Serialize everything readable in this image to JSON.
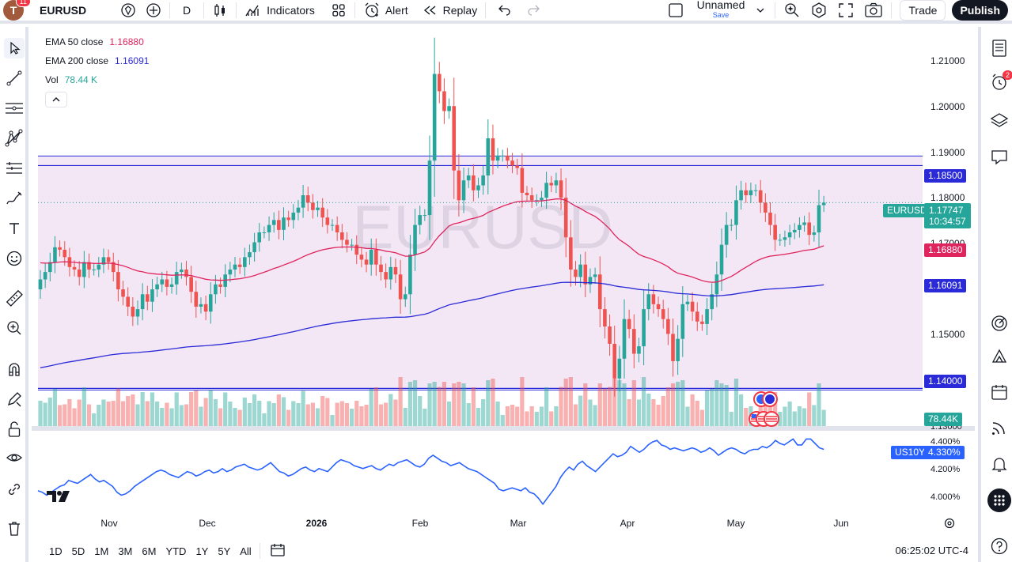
{
  "toolbar": {
    "avatar_letter": "T",
    "notif_count": "11",
    "symbol": "EURUSD",
    "interval": "D",
    "indicators_label": "Indicators",
    "alert_label": "Alert",
    "replay_label": "Replay",
    "layout_name": "Unnamed",
    "layout_save": "Save",
    "trade_label": "Trade",
    "publish_label": "Publish"
  },
  "legend": {
    "ema50_label": "EMA 50 close",
    "ema50_value": "1.16880",
    "ema200_label": "EMA 200 close",
    "ema200_value": "1.16091",
    "vol_label": "Vol",
    "vol_value": "78.44 K"
  },
  "watermark": "EURUSD",
  "price_axis": {
    "ticks": [
      "1.21000",
      "1.20000",
      "1.19000",
      "1.18000",
      "1.17000",
      "1.15000"
    ],
    "line_upper": "1.18500",
    "line_lower": "1.14000",
    "symbol_tag": "EURUSD",
    "last_price": "1.17747",
    "countdown": "10:34:57",
    "ema50_tag": "1.16880",
    "ema200_tag": "1.16091",
    "vol_tag": "78.44K",
    "price_1_13": "1.13000"
  },
  "us10y": {
    "symbol": "US10Y",
    "value": "4.330%",
    "ticks": [
      "4.400%",
      "4.200%",
      "4.000%"
    ]
  },
  "time_axis": [
    "Nov",
    "Dec",
    "2026",
    "Feb",
    "Mar",
    "Apr",
    "May",
    "Jun"
  ],
  "ranges": [
    "1D",
    "5D",
    "1M",
    "3M",
    "6M",
    "YTD",
    "1Y",
    "5Y",
    "All"
  ],
  "clock": "06:25:02 UTC-4",
  "right_sidebar": {
    "alerts_badge": "2"
  },
  "colors": {
    "up": "#26a69a",
    "down": "#ef5350",
    "ema50": "#e0245e",
    "ema200": "#2a2ad8",
    "zone": "#f3e7f5",
    "hline": "#2a2ad8",
    "us10y_line": "#2962ff"
  },
  "chart_data": {
    "type": "candlestick",
    "symbol": "EURUSD",
    "ylim": [
      1.13,
      1.213
    ],
    "closes": [
      1.162,
      1.1635,
      1.1655,
      1.1685,
      1.168,
      1.1665,
      1.1645,
      1.164,
      1.1625,
      1.1655,
      1.164,
      1.164,
      1.165,
      1.1665,
      1.1655,
      1.1635,
      1.16,
      1.1585,
      1.1565,
      1.1545,
      1.156,
      1.159,
      1.1575,
      1.16,
      1.161,
      1.162,
      1.1605,
      1.161,
      1.1635,
      1.164,
      1.1625,
      1.1595,
      1.1565,
      1.157,
      1.1555,
      1.159,
      1.161,
      1.1605,
      1.163,
      1.164,
      1.165,
      1.1645,
      1.1665,
      1.1675,
      1.1695,
      1.1715,
      1.1715,
      1.173,
      1.174,
      1.172,
      1.1745,
      1.174,
      1.1755,
      1.1765,
      1.179,
      1.1775,
      1.176,
      1.1765,
      1.1745,
      1.173,
      1.173,
      1.1715,
      1.17,
      1.169,
      1.169,
      1.167,
      1.166,
      1.165,
      1.168,
      1.165,
      1.1635,
      1.162,
      1.1645,
      1.163,
      1.158,
      1.159,
      1.167,
      1.173,
      1.175,
      1.175,
      1.186,
      1.2035,
      1.2,
      1.196,
      1.197,
      1.184,
      1.178,
      1.182,
      1.183,
      1.18,
      1.181,
      1.183,
      1.1905,
      1.186,
      1.187,
      1.187,
      1.186,
      1.185,
      1.1845,
      1.1795,
      1.179,
      1.178,
      1.178,
      1.1785,
      1.1815,
      1.181,
      1.182,
      1.1785,
      1.1705,
      1.164,
      1.1625,
      1.165,
      1.161,
      1.1625,
      1.163,
      1.156,
      1.1525,
      1.149,
      1.142,
      1.146,
      1.154,
      1.152,
      1.147,
      1.1485,
      1.156,
      1.159,
      1.157,
      1.156,
      1.154,
      1.151,
      1.1455,
      1.15,
      1.157,
      1.1575,
      1.1555,
      1.1535,
      1.153,
      1.156,
      1.159,
      1.163,
      1.169,
      1.173,
      1.173,
      1.178,
      1.18,
      1.179,
      1.18,
      1.18,
      1.1775,
      1.1755,
      1.173,
      1.17,
      1.17,
      1.1705,
      1.1715,
      1.172,
      1.173,
      1.1735,
      1.171,
      1.1715,
      1.177,
      1.1775
    ],
    "ema50_last": 1.1688,
    "ema200_last": 1.16091,
    "horizontal_lines": [
      1.185,
      1.14
    ],
    "us10y_values": [
      4.05,
      4.04,
      4.02,
      4.04,
      4.06,
      4.08,
      4.09,
      4.12,
      4.11,
      4.1,
      4.12,
      4.14,
      4.16,
      4.13,
      4.11,
      4.12,
      4.1,
      4.08,
      4.04,
      4.02,
      4.03,
      4.05,
      4.08,
      4.1,
      4.12,
      4.14,
      4.16,
      4.18,
      4.19,
      4.18,
      4.16,
      4.15,
      4.14,
      4.16,
      4.18,
      4.17,
      4.15,
      4.16,
      4.18,
      4.19,
      4.17,
      4.18,
      4.2,
      4.18,
      4.19,
      4.21,
      4.22,
      4.23,
      4.21,
      4.2,
      4.19,
      4.2,
      4.22,
      4.24,
      4.21,
      4.18,
      4.17,
      4.15,
      4.16,
      4.18,
      4.2,
      4.21,
      4.19,
      4.18,
      4.2,
      4.19,
      4.18,
      4.21,
      4.24,
      4.26,
      4.25,
      4.24,
      4.22,
      4.21,
      4.2,
      4.21,
      4.22,
      4.2,
      4.19,
      4.21,
      4.23,
      4.22,
      4.24,
      4.25,
      4.26,
      4.24,
      4.22,
      4.21,
      4.23,
      4.27,
      4.29,
      4.27,
      4.25,
      4.24,
      4.22,
      4.23,
      4.24,
      4.22,
      4.2,
      4.19,
      4.18,
      4.16,
      4.14,
      4.12,
      4.1,
      4.06,
      4.05,
      4.06,
      4.07,
      4.06,
      4.05,
      4.07,
      4.04,
      4.03,
      4.0,
      3.96,
      4.0,
      4.04,
      4.08,
      4.14,
      4.18,
      4.21,
      4.19,
      4.23,
      4.25,
      4.22,
      4.2,
      4.18,
      4.21,
      4.24,
      4.27,
      4.3,
      4.28,
      4.29,
      4.31,
      4.35,
      4.33,
      4.31,
      4.33,
      4.36,
      4.38,
      4.39,
      4.36,
      4.35,
      4.33,
      4.34,
      4.33,
      4.32,
      4.33,
      4.34,
      4.33,
      4.31,
      4.32,
      4.34,
      4.32,
      4.29,
      4.31,
      4.33,
      4.34,
      4.33,
      4.31,
      4.3,
      4.32,
      4.33,
      4.33,
      4.35,
      4.34,
      4.36,
      4.39,
      4.37,
      4.36,
      4.38,
      4.4,
      4.36,
      4.36,
      4.4,
      4.4,
      4.37,
      4.34,
      4.33
    ],
    "us10y_ylim": [
      3.9,
      4.45
    ]
  }
}
